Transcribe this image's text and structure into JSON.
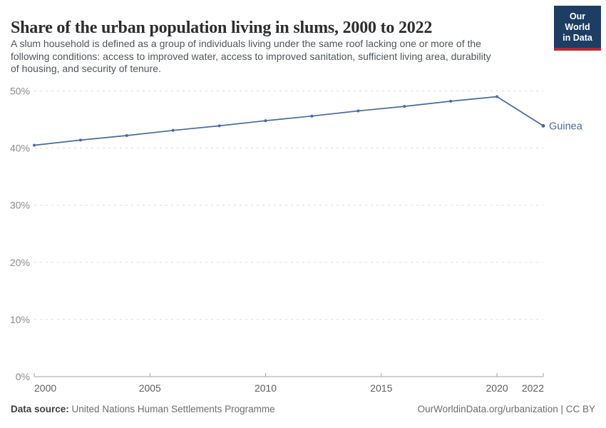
{
  "header": {
    "title": "Share of the urban population living in slums, 2000 to 2022",
    "subtitle_lines": [
      "A slum household is defined as a group of individuals living under the same roof lacking one or more of the",
      "following conditions: access to improved water, access to improved sanitation, sufficient living area, durability",
      "of housing, and security of tenure."
    ],
    "logo": {
      "line1": "Our World",
      "line2": "in Data"
    }
  },
  "chart_data": {
    "type": "line",
    "title": "Share of the urban population living in slums, 2000 to 2022",
    "x": [
      2000,
      2002,
      2004,
      2006,
      2008,
      2010,
      2012,
      2014,
      2016,
      2018,
      2020,
      2022
    ],
    "series": [
      {
        "name": "Guinea",
        "color": "#4C6A9C",
        "values": [
          40.5,
          41.4,
          42.2,
          43.1,
          43.9,
          44.8,
          45.6,
          46.5,
          47.3,
          48.2,
          49.0,
          43.9
        ]
      }
    ],
    "xlabel": "",
    "ylabel": "",
    "xlim": [
      2000,
      2022
    ],
    "ylim": [
      0,
      50
    ],
    "y_ticks": [
      0,
      10,
      20,
      30,
      40,
      50
    ],
    "y_tick_suffix": "%",
    "x_ticks": [
      2000,
      2005,
      2010,
      2015,
      2020,
      2022
    ],
    "grid": "horizontal-dashed",
    "legend_position": "end-of-line-label",
    "end_label": "Guinea"
  },
  "footer": {
    "datasource_label": "Data source:",
    "datasource_value": "United Nations Human Settlements Programme",
    "credit": "OurWorldinData.org/urbanization | CC BY"
  },
  "colors": {
    "series_blue": "#4C6A9C",
    "logo_navy": "#1D3D63",
    "logo_red": "#C0272D",
    "gridline": "#DBDBDB",
    "axis": "#A3A3A3",
    "y_tick_label": "#8C8C8C",
    "x_tick_label": "#5F5F5F",
    "title_text": "#2D2D2D",
    "subtitle_text": "#51565B"
  }
}
